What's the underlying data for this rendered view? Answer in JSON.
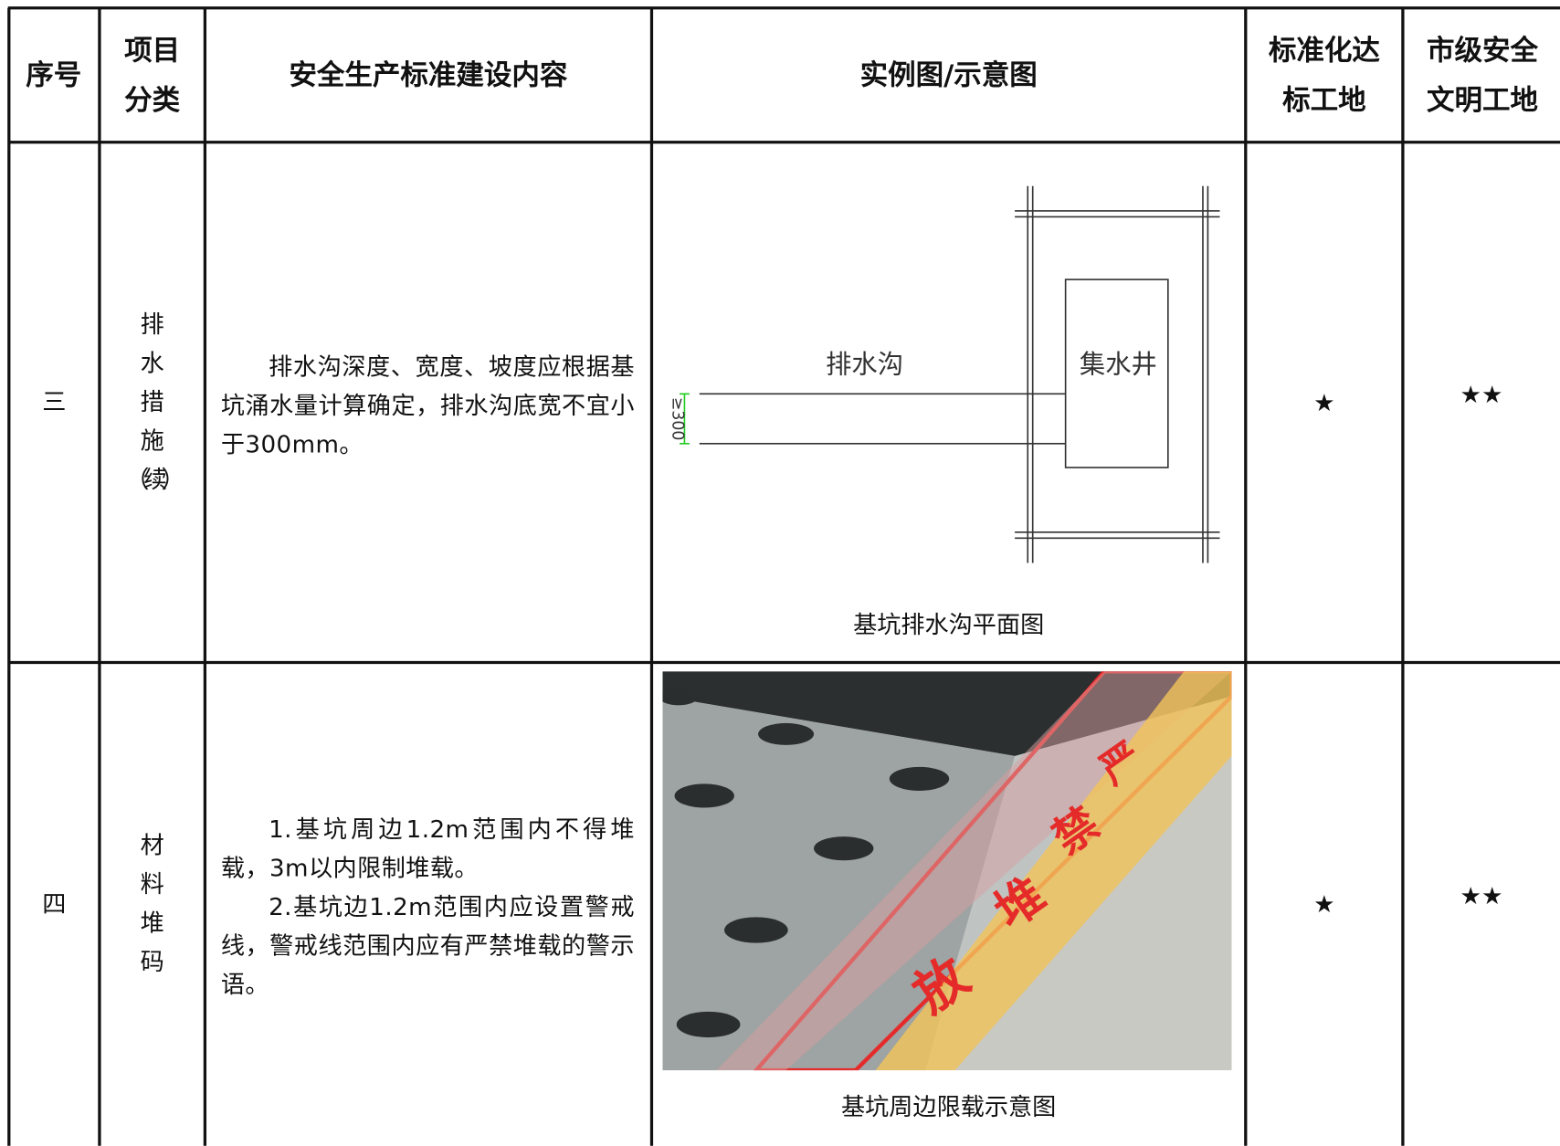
{
  "table": {
    "headers": [
      "序号",
      "项目分类",
      "安全生产标准建设内容",
      "实例图/示意图",
      "标准化达标工地",
      "市级安全文明工地"
    ],
    "rows": [
      {
        "number": "三",
        "category": [
          "排",
          "水",
          "措",
          "施",
          "（续）"
        ],
        "content": [
          "排水沟深度、宽度、坡度应根据基坑涌水量计算确定，排水沟底宽不宜小于300mm。"
        ],
        "figure": {
          "caption": "基坑排水沟平面图",
          "labels": [
            "排水沟",
            "集水井",
            "≥300"
          ]
        },
        "standard": "★",
        "city": "★★"
      },
      {
        "number": "四",
        "category": [
          "材",
          "料",
          "堆",
          "码"
        ],
        "content": [
          "1.基坑周边1.2m范围内不得堆载，3m以内限制堆载。",
          "2.基坑边1.2m范围内应设置警戒线，警戒线范围内应有严禁堆载的警示语。"
        ],
        "figure": {
          "caption": "基坑周边限载示意图",
          "labels": [
            "严",
            "禁",
            "堆",
            "放"
          ]
        },
        "standard": "★",
        "city": "★★"
      }
    ]
  }
}
